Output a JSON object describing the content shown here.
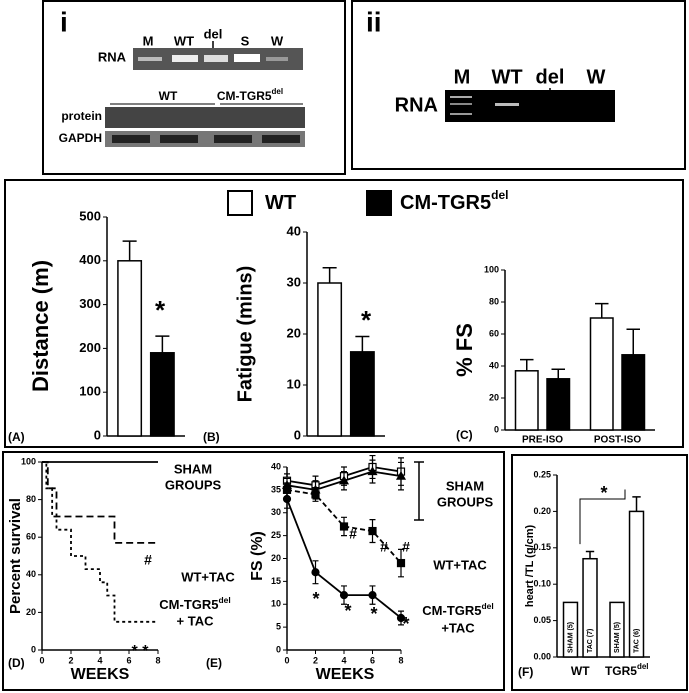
{
  "gels": {
    "i": {
      "label": "i",
      "lanes": [
        "M",
        "WT",
        "del",
        "S",
        "W"
      ],
      "rna": "RNA",
      "groups": [
        "WT",
        "CM-TGR5"
      ],
      "group_sup": "del",
      "protein": "protein",
      "gapdh": "GAPDH"
    },
    "ii": {
      "label": "ii",
      "lanes": [
        "M",
        "WT",
        "del",
        "W"
      ],
      "rna": "RNA"
    }
  },
  "legend": [
    {
      "name": "WT",
      "color": "#ffffff"
    },
    {
      "name": "CM-TGR5",
      "sup": "del",
      "color": "#000000"
    }
  ],
  "chart_data": [
    {
      "type": "bar",
      "panel": "(A)",
      "ylabel": "Distance (m)",
      "categories": [
        null
      ],
      "series": [
        {
          "color": "#ffffff",
          "values": [
            400
          ],
          "errors": [
            45
          ]
        },
        {
          "color": "#000000",
          "values": [
            190
          ],
          "errors": [
            38
          ]
        }
      ],
      "ylim": [
        0,
        500
      ],
      "yticks": [
        0,
        100,
        200,
        300,
        400,
        500
      ],
      "annotations": [
        "*"
      ]
    },
    {
      "type": "bar",
      "panel": "(B)",
      "ylabel": "Fatigue (mins)",
      "categories": [
        null
      ],
      "series": [
        {
          "color": "#ffffff",
          "values": [
            30
          ],
          "errors": [
            3
          ]
        },
        {
          "color": "#000000",
          "values": [
            16.5
          ],
          "errors": [
            3
          ]
        }
      ],
      "ylim": [
        0,
        40
      ],
      "yticks": [
        0,
        10,
        20,
        30,
        40
      ],
      "annotations": [
        "*"
      ]
    },
    {
      "type": "bar",
      "panel": "(C)",
      "ylabel": "% FS",
      "categories": [
        "PRE-ISO",
        "POST-ISO"
      ],
      "series": [
        {
          "color": "#ffffff",
          "values": [
            37,
            70
          ],
          "errors": [
            7,
            9
          ]
        },
        {
          "color": "#000000",
          "values": [
            32,
            47
          ],
          "errors": [
            6,
            16
          ]
        }
      ],
      "ylim": [
        0,
        100
      ],
      "yticks": [
        0,
        20,
        40,
        60,
        80,
        100
      ],
      "annotations": []
    },
    {
      "type": "line",
      "panel": "(D)",
      "ylabel": "Percent survival",
      "xlabel": "WEEKS",
      "xlim": [
        0,
        8
      ],
      "xticks": [
        0,
        2,
        4,
        6,
        8
      ],
      "ylim": [
        0,
        100
      ],
      "yticks": [
        0,
        20,
        40,
        60,
        80,
        100
      ],
      "series": [
        {
          "name": [
            "SHAM",
            "GROUPS"
          ],
          "color": "#000000",
          "dash": "none",
          "x": [
            0,
            8
          ],
          "values": [
            100,
            100
          ]
        },
        {
          "name": [
            "WT+TAC"
          ],
          "color": "#000000",
          "dash": "7 4",
          "x": [
            0,
            0.4,
            0.4,
            1,
            1,
            5,
            5,
            8
          ],
          "values": [
            100,
            100,
            86,
            86,
            71,
            71,
            57,
            57
          ]
        },
        {
          "name": [
            {
              "text": "CM-TGR5",
              "sup": "del"
            },
            "+ TAC"
          ],
          "color": "#000000",
          "dash": "3 3",
          "x": [
            0,
            0.3,
            0.3,
            0.7,
            0.7,
            1,
            1,
            2,
            2,
            3,
            3,
            4,
            4,
            4.5,
            4.5,
            5,
            5,
            8
          ],
          "values": [
            100,
            100,
            86,
            86,
            71,
            71,
            64,
            64,
            50,
            50,
            43,
            43,
            36,
            36,
            29,
            29,
            15,
            15
          ]
        }
      ],
      "annotations": [
        "#",
        "* *"
      ]
    },
    {
      "type": "line",
      "panel": "(E)",
      "ylabel": "FS (%)",
      "xlabel": "WEEKS",
      "x": [
        0,
        2,
        4,
        6,
        8
      ],
      "xlim": [
        0,
        8
      ],
      "xticks": [
        0,
        2,
        4,
        6,
        8
      ],
      "ylim": [
        0,
        40
      ],
      "yticks": [
        0,
        5,
        10,
        15,
        20,
        25,
        30,
        35,
        40
      ],
      "series": [
        {
          "name": [
            "SHAM",
            "GROUPS"
          ],
          "color": "#000000",
          "dash": "none",
          "marker": "open-square",
          "values": [
            37,
            36,
            38,
            40,
            39
          ],
          "errors": [
            1.5,
            2,
            2,
            2.5,
            3
          ]
        },
        {
          "color": "#000000",
          "dash": "none",
          "marker": "triangle",
          "values": [
            36,
            35,
            37,
            39,
            38
          ],
          "errors": [
            1.5,
            2,
            2,
            2.5,
            3
          ]
        },
        {
          "name": [
            "WT+TAC"
          ],
          "color": "#000000",
          "dash": "5 3",
          "marker": "square",
          "values": [
            35,
            34,
            27,
            26,
            19
          ],
          "errors": [
            1.5,
            1.5,
            2,
            2.5,
            3
          ]
        },
        {
          "name": [
            {
              "text": "CM-TGR5",
              "sup": "del"
            },
            "+TAC"
          ],
          "color": "#000000",
          "dash": "none",
          "marker": "circle",
          "values": [
            33,
            17,
            12,
            12,
            7
          ],
          "errors": [
            2,
            2.5,
            2,
            2,
            1.5
          ]
        }
      ],
      "annotations": [
        "#",
        "#",
        "#",
        "*",
        "*",
        "*",
        "*"
      ]
    },
    {
      "type": "bar",
      "panel": "(F)",
      "ylabel": "heart /TL (g/cm)",
      "categories": [
        "WT",
        "TGR5"
      ],
      "category_sup": [
        null,
        "del"
      ],
      "series": [
        {
          "color": "#ffffff",
          "values": [
            0.075,
            0.075
          ],
          "bar_labels": [
            "SHAM (5)",
            "SHAM (5)"
          ]
        },
        {
          "color": "#ffffff",
          "values": [
            0.135,
            0.2
          ],
          "errors": [
            0.01,
            0.02
          ],
          "bar_labels": [
            "TAC (7)",
            "TAC (6)"
          ]
        }
      ],
      "ylim": [
        0,
        0.25
      ],
      "yticks": [
        {
          "value": 0,
          "label": "0.00"
        },
        0.05,
        {
          "value": 0.1,
          "label": "0.10"
        },
        0.15,
        {
          "value": 0.2,
          "label": "0.20"
        },
        0.25
      ],
      "annotations": [
        "*"
      ]
    }
  ]
}
